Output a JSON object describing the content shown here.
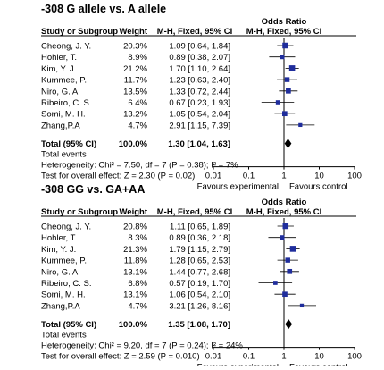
{
  "chart_data": [
    {
      "type": "forest",
      "title": "-308 G allele vs. A allele",
      "columns": {
        "study": "Study or Subgroup",
        "weight": "Weight",
        "ci": "M-H, Fixed, 95% CI",
        "or_title": "Odds Ratio",
        "or_sub": "M-H, Fixed, 95% CI"
      },
      "studies": [
        {
          "name": "Cheong, J. Y.",
          "weight": "20.3%",
          "ci_text": "1.09 [0.64, 1.84]",
          "or": 1.09,
          "lo": 0.64,
          "hi": 1.84,
          "w": 20.3
        },
        {
          "name": "Hohler, T.",
          "weight": "8.9%",
          "ci_text": "0.89 [0.38, 2.07]",
          "or": 0.89,
          "lo": 0.38,
          "hi": 2.07,
          "w": 8.9
        },
        {
          "name": "Kim, Y. J.",
          "weight": "21.2%",
          "ci_text": "1.70 [1.10, 2.64]",
          "or": 1.7,
          "lo": 1.1,
          "hi": 2.64,
          "w": 21.2
        },
        {
          "name": "Kummee, P.",
          "weight": "11.7%",
          "ci_text": "1.23 [0.63, 2.40]",
          "or": 1.23,
          "lo": 0.63,
          "hi": 2.4,
          "w": 11.7
        },
        {
          "name": "Niro, G. A.",
          "weight": "13.5%",
          "ci_text": "1.33 [0.72, 2.44]",
          "or": 1.33,
          "lo": 0.72,
          "hi": 2.44,
          "w": 13.5
        },
        {
          "name": "Ribeiro, C. S.",
          "weight": "6.4%",
          "ci_text": "0.67 [0.23, 1.93]",
          "or": 0.67,
          "lo": 0.23,
          "hi": 1.93,
          "w": 6.4
        },
        {
          "name": "Somi, M. H.",
          "weight": "13.2%",
          "ci_text": "1.05 [0.54, 2.04]",
          "or": 1.05,
          "lo": 0.54,
          "hi": 2.04,
          "w": 13.2
        },
        {
          "name": "Zhang,P.A",
          "weight": "4.7%",
          "ci_text": "2.91 [1.15, 7.39]",
          "or": 2.91,
          "lo": 1.15,
          "hi": 7.39,
          "w": 4.7
        }
      ],
      "total": {
        "name": "Total (95% CI)",
        "weight": "100.0%",
        "ci_text": "1.30 [1.04, 1.63]",
        "or": 1.3,
        "lo": 1.04,
        "hi": 1.63
      },
      "total_events": "Total events",
      "heterogeneity": "Heterogeneity: Chi² = 7.50, df = 7 (P = 0.38); I² = 7%",
      "overall_effect": "Test for overall effect: Z = 2.30 (P = 0.02)",
      "x_scale": "log",
      "xlim": [
        0.01,
        100
      ],
      "x_ticks": [
        "0.01",
        "0.1",
        "1",
        "10",
        "100"
      ],
      "favours_left": "Favours experimental",
      "favours_right": "Favours control"
    },
    {
      "type": "forest",
      "title": "-308 GG vs. GA+AA",
      "columns": {
        "study": "Study or Subgroup",
        "weight": "Weight",
        "ci": "M-H, Fixed, 95% CI",
        "or_title": "Odds Ratio",
        "or_sub": "M-H, Fixed, 95% CI"
      },
      "studies": [
        {
          "name": "Cheong, J. Y.",
          "weight": "20.8%",
          "ci_text": "1.11 [0.65, 1.89]",
          "or": 1.11,
          "lo": 0.65,
          "hi": 1.89,
          "w": 20.8
        },
        {
          "name": "Hohler, T.",
          "weight": "8.3%",
          "ci_text": "0.89 [0.36, 2.18]",
          "or": 0.89,
          "lo": 0.36,
          "hi": 2.18,
          "w": 8.3
        },
        {
          "name": "Kim, Y. J.",
          "weight": "21.3%",
          "ci_text": "1.79 [1.15, 2.79]",
          "or": 1.79,
          "lo": 1.15,
          "hi": 2.79,
          "w": 21.3
        },
        {
          "name": "Kummee, P.",
          "weight": "11.8%",
          "ci_text": "1.28 [0.65, 2.53]",
          "or": 1.28,
          "lo": 0.65,
          "hi": 2.53,
          "w": 11.8
        },
        {
          "name": "Niro, G. A.",
          "weight": "13.1%",
          "ci_text": "1.44 [0.77, 2.68]",
          "or": 1.44,
          "lo": 0.77,
          "hi": 2.68,
          "w": 13.1
        },
        {
          "name": "Ribeiro, C. S.",
          "weight": "6.8%",
          "ci_text": "0.57 [0.19, 1.70]",
          "or": 0.57,
          "lo": 0.19,
          "hi": 1.7,
          "w": 6.8
        },
        {
          "name": "Somi, M. H.",
          "weight": "13.1%",
          "ci_text": "1.06 [0.54, 2.10]",
          "or": 1.06,
          "lo": 0.54,
          "hi": 2.1,
          "w": 13.1
        },
        {
          "name": "Zhang,P.A",
          "weight": "4.7%",
          "ci_text": "3.21 [1.26, 8.16]",
          "or": 3.21,
          "lo": 1.26,
          "hi": 8.16,
          "w": 4.7
        }
      ],
      "total": {
        "name": "Total (95% CI)",
        "weight": "100.0%",
        "ci_text": "1.35 [1.08, 1.70]",
        "or": 1.35,
        "lo": 1.08,
        "hi": 1.7
      },
      "total_events": "Total events",
      "heterogeneity": "Heterogeneity: Chi² = 9.20, df = 7 (P = 0.24); I² = 24%",
      "overall_effect": "Test for overall effect: Z = 2.59 (P = 0.010)",
      "x_scale": "log",
      "xlim": [
        0.01,
        100
      ],
      "x_ticks": [
        "0.01",
        "0.1",
        "1",
        "10",
        "100"
      ],
      "favours_left": "Favours experimental",
      "favours_right": "Favours control"
    }
  ],
  "colors": {
    "marker": "#1f2d9c",
    "diamond": "#000000",
    "line": "#000000"
  }
}
